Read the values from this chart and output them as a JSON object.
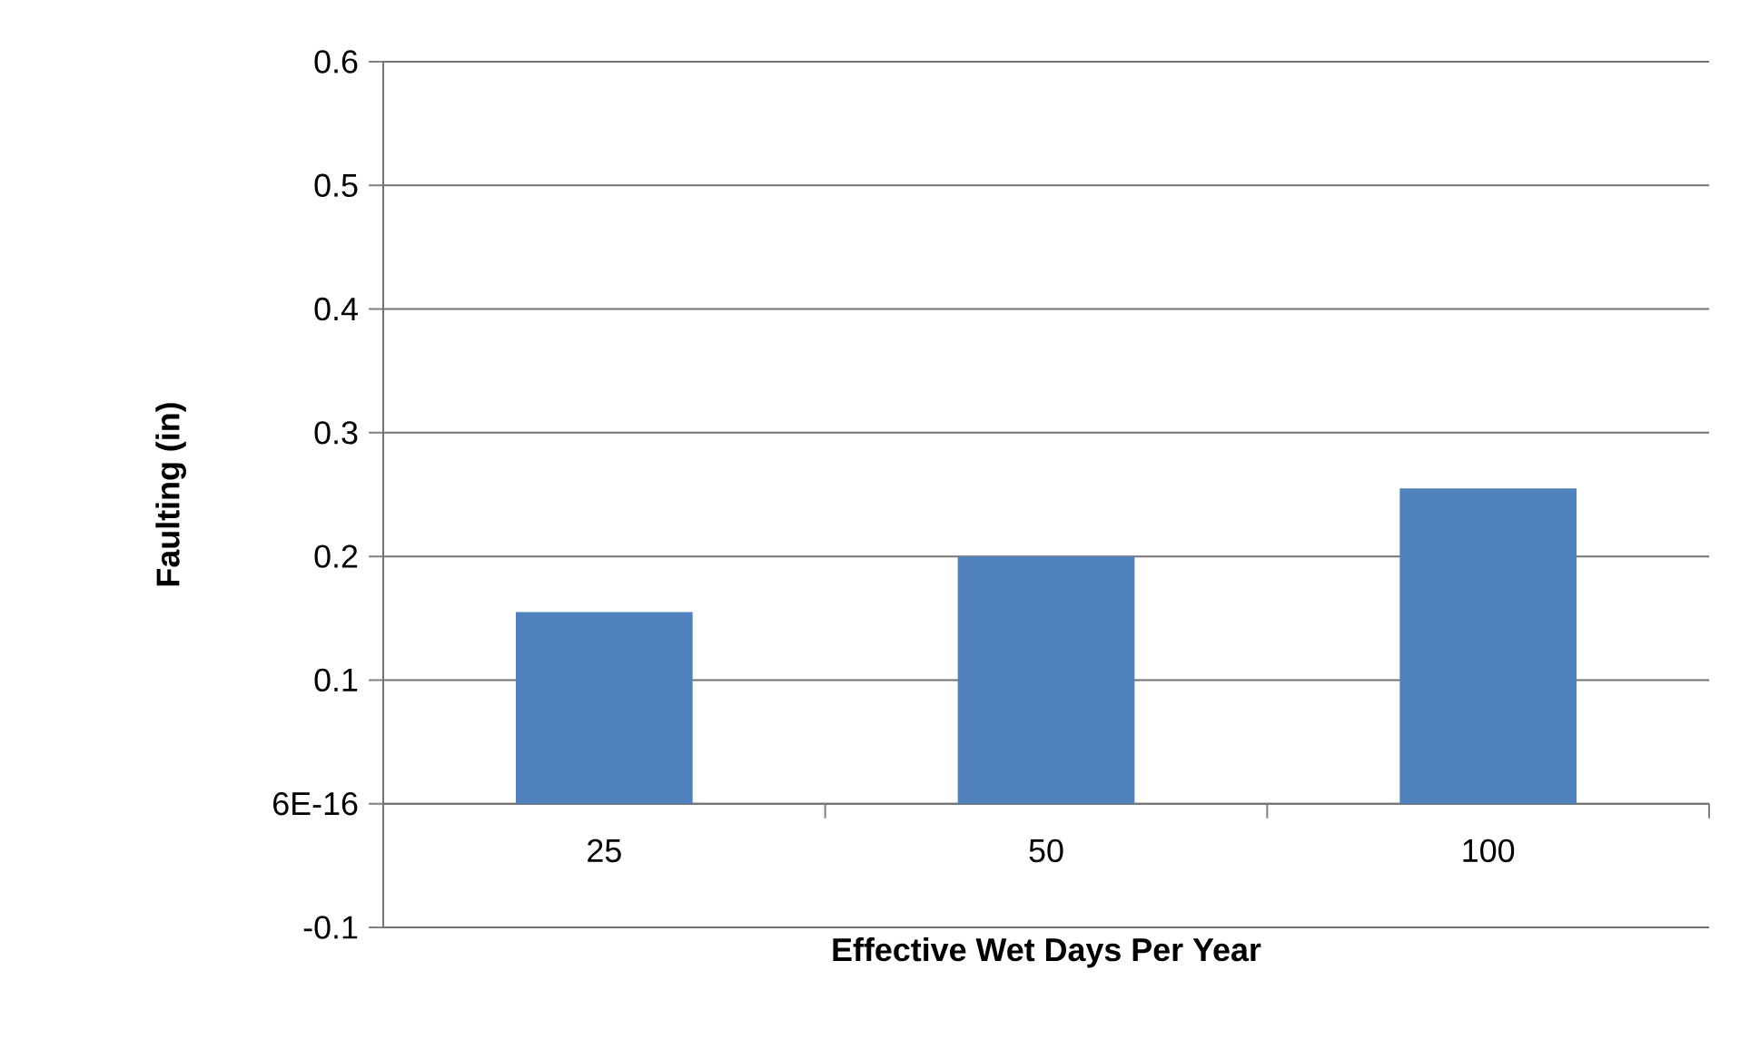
{
  "chart_data": {
    "type": "bar",
    "xlabel": "Effective Wet Days Per Year",
    "ylabel": "Faulting (in)",
    "categories": [
      "25",
      "50",
      "100"
    ],
    "values": [
      0.155,
      0.2,
      0.255
    ],
    "color": "#4f81bd",
    "ylim": [
      -0.1,
      0.6
    ],
    "yticks": [
      -0.1,
      {
        "value": 0,
        "label": "6E-16"
      },
      0.1,
      0.2,
      0.3,
      0.4,
      0.5,
      0.6
    ],
    "grid": "y"
  }
}
